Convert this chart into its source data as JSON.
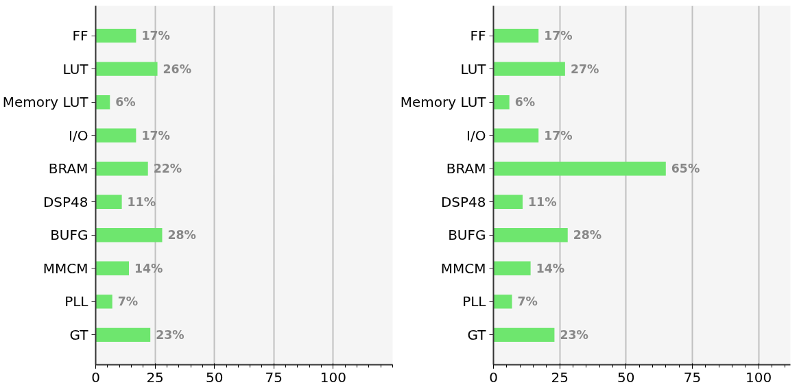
{
  "chart_data": [
    {
      "type": "bar",
      "orientation": "horizontal",
      "categories": [
        "FF",
        "LUT",
        "Memory LUT",
        "I/O",
        "BRAM",
        "DSP48",
        "BUFG",
        "MMCM",
        "PLL",
        "GT"
      ],
      "values": [
        17,
        26,
        6,
        17,
        22,
        11,
        28,
        14,
        7,
        23
      ],
      "color": "#6ee66e",
      "value_labels": [
        "17%",
        "26%",
        "6%",
        "17%",
        "22%",
        "11%",
        "28%",
        "14%",
        "7%",
        "23%"
      ],
      "xlim": [
        0,
        125
      ],
      "xticks": [
        0,
        25,
        50,
        75,
        100
      ],
      "grid": "x"
    },
    {
      "type": "bar",
      "orientation": "horizontal",
      "categories": [
        "FF",
        "LUT",
        "Memory LUT",
        "I/O",
        "BRAM",
        "DSP48",
        "BUFG",
        "MMCM",
        "PLL",
        "GT"
      ],
      "values": [
        17,
        27,
        6,
        17,
        65,
        11,
        28,
        14,
        7,
        23
      ],
      "color": "#6ee66e",
      "value_labels": [
        "17%",
        "27%",
        "6%",
        "17%",
        "65%",
        "11%",
        "28%",
        "14%",
        "7%",
        "23%"
      ],
      "xlim": [
        0,
        112
      ],
      "xticks": [
        0,
        25,
        50,
        75,
        100
      ],
      "grid": "x"
    }
  ]
}
